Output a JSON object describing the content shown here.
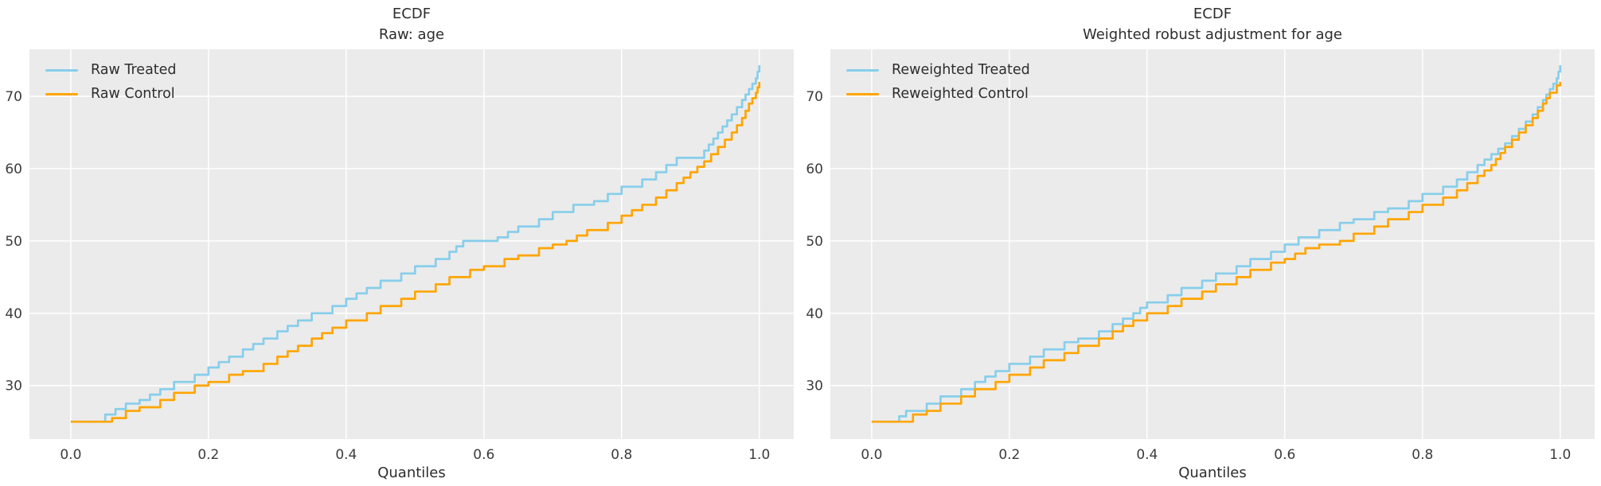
{
  "figure": {
    "background": "#ffffff",
    "text_color": "#2d2d2d",
    "tick_color": "#3c3c3c"
  },
  "chart_data": [
    {
      "type": "line",
      "subtype": "quantile-step-ecdf",
      "title_lines": [
        "ECDF",
        "Raw: age"
      ],
      "xlabel": "Quantiles",
      "ylabel": "",
      "xlim": [
        -0.06,
        1.05
      ],
      "ylim": [
        22.6,
        76.5
      ],
      "xticks": [
        0.0,
        0.2,
        0.4,
        0.6,
        0.8,
        1.0
      ],
      "xtick_labels": [
        "0.0",
        "0.2",
        "0.4",
        "0.6",
        "0.8",
        "1.0"
      ],
      "yticks": [
        30,
        40,
        50,
        60,
        70
      ],
      "grid": true,
      "legend_position": "upper-left",
      "plot_background": "#ebebeb",
      "grid_color": "#ffffff",
      "series": [
        {
          "name": "Raw Treated",
          "color": "#87ceeb",
          "points": [
            [
              0.0,
              25
            ],
            [
              0.03,
              25
            ],
            [
              0.05,
              26
            ],
            [
              0.08,
              27.5
            ],
            [
              0.1,
              28
            ],
            [
              0.13,
              29.5
            ],
            [
              0.15,
              30.5
            ],
            [
              0.18,
              31.5
            ],
            [
              0.2,
              32.5
            ],
            [
              0.23,
              34
            ],
            [
              0.25,
              35
            ],
            [
              0.28,
              36.5
            ],
            [
              0.3,
              37.5
            ],
            [
              0.33,
              39
            ],
            [
              0.35,
              40
            ],
            [
              0.38,
              41
            ],
            [
              0.4,
              42
            ],
            [
              0.43,
              43.5
            ],
            [
              0.45,
              44.5
            ],
            [
              0.48,
              45.5
            ],
            [
              0.5,
              46.5
            ],
            [
              0.53,
              47.5
            ],
            [
              0.55,
              48.5
            ],
            [
              0.57,
              50
            ],
            [
              0.62,
              50.5
            ],
            [
              0.65,
              52
            ],
            [
              0.68,
              53
            ],
            [
              0.7,
              54
            ],
            [
              0.73,
              55
            ],
            [
              0.76,
              55.5
            ],
            [
              0.8,
              57.5
            ],
            [
              0.83,
              58.5
            ],
            [
              0.85,
              59.5
            ],
            [
              0.88,
              61.5
            ],
            [
              0.92,
              62.5
            ],
            [
              0.94,
              65
            ],
            [
              0.96,
              67.5
            ],
            [
              0.975,
              69.5
            ],
            [
              0.985,
              71
            ],
            [
              0.995,
              72.5
            ],
            [
              1.0,
              74.3
            ]
          ]
        },
        {
          "name": "Raw Control",
          "color": "#ffa500",
          "points": [
            [
              0.0,
              25
            ],
            [
              0.045,
              25
            ],
            [
              0.06,
              25.5
            ],
            [
              0.08,
              26.5
            ],
            [
              0.1,
              27
            ],
            [
              0.13,
              28
            ],
            [
              0.15,
              29
            ],
            [
              0.18,
              30
            ],
            [
              0.2,
              30.5
            ],
            [
              0.23,
              31.5
            ],
            [
              0.25,
              32
            ],
            [
              0.28,
              33
            ],
            [
              0.3,
              34
            ],
            [
              0.33,
              35.5
            ],
            [
              0.35,
              36.5
            ],
            [
              0.38,
              38
            ],
            [
              0.4,
              39
            ],
            [
              0.43,
              40
            ],
            [
              0.45,
              41
            ],
            [
              0.48,
              42
            ],
            [
              0.5,
              43
            ],
            [
              0.53,
              44
            ],
            [
              0.55,
              45
            ],
            [
              0.58,
              46
            ],
            [
              0.6,
              46.5
            ],
            [
              0.63,
              47.5
            ],
            [
              0.65,
              48
            ],
            [
              0.68,
              49
            ],
            [
              0.7,
              49.5
            ],
            [
              0.72,
              50
            ],
            [
              0.75,
              51.5
            ],
            [
              0.78,
              52.5
            ],
            [
              0.8,
              53.5
            ],
            [
              0.83,
              55
            ],
            [
              0.85,
              56
            ],
            [
              0.88,
              58
            ],
            [
              0.9,
              59.5
            ],
            [
              0.92,
              61
            ],
            [
              0.94,
              63
            ],
            [
              0.96,
              65
            ],
            [
              0.975,
              67
            ],
            [
              0.985,
              69
            ],
            [
              0.995,
              70.5
            ],
            [
              1.0,
              72
            ]
          ]
        }
      ]
    },
    {
      "type": "line",
      "subtype": "quantile-step-ecdf",
      "title_lines": [
        "ECDF",
        "Weighted robust adjustment for age"
      ],
      "xlabel": "Quantiles",
      "ylabel": "",
      "xlim": [
        -0.06,
        1.05
      ],
      "ylim": [
        22.6,
        76.5
      ],
      "xticks": [
        0.0,
        0.2,
        0.4,
        0.6,
        0.8,
        1.0
      ],
      "xtick_labels": [
        "0.0",
        "0.2",
        "0.4",
        "0.6",
        "0.8",
        "1.0"
      ],
      "yticks": [
        30,
        40,
        50,
        60,
        70
      ],
      "grid": true,
      "legend_position": "upper-left",
      "plot_background": "#ebebeb",
      "grid_color": "#ffffff",
      "series": [
        {
          "name": "Reweighted Treated",
          "color": "#87ceeb",
          "points": [
            [
              0.0,
              25
            ],
            [
              0.03,
              25
            ],
            [
              0.05,
              26.5
            ],
            [
              0.08,
              27.5
            ],
            [
              0.1,
              28.5
            ],
            [
              0.13,
              29.5
            ],
            [
              0.15,
              30.5
            ],
            [
              0.18,
              32
            ],
            [
              0.2,
              33
            ],
            [
              0.23,
              34
            ],
            [
              0.25,
              35
            ],
            [
              0.28,
              36
            ],
            [
              0.3,
              36.5
            ],
            [
              0.33,
              37.5
            ],
            [
              0.35,
              38.5
            ],
            [
              0.38,
              40
            ],
            [
              0.4,
              41.5
            ],
            [
              0.43,
              42.5
            ],
            [
              0.45,
              43.5
            ],
            [
              0.48,
              44.5
            ],
            [
              0.5,
              45.5
            ],
            [
              0.53,
              46.5
            ],
            [
              0.55,
              47.5
            ],
            [
              0.58,
              48.5
            ],
            [
              0.6,
              49.5
            ],
            [
              0.62,
              50.5
            ],
            [
              0.65,
              51.5
            ],
            [
              0.68,
              52.5
            ],
            [
              0.7,
              53
            ],
            [
              0.73,
              54
            ],
            [
              0.75,
              54.5
            ],
            [
              0.78,
              55.5
            ],
            [
              0.8,
              56.5
            ],
            [
              0.83,
              57.5
            ],
            [
              0.85,
              58.5
            ],
            [
              0.88,
              60.5
            ],
            [
              0.9,
              62
            ],
            [
              0.92,
              63.5
            ],
            [
              0.94,
              65.5
            ],
            [
              0.96,
              67.5
            ],
            [
              0.975,
              69.5
            ],
            [
              0.985,
              71
            ],
            [
              0.995,
              72.5
            ],
            [
              1.0,
              74.3
            ]
          ]
        },
        {
          "name": "Reweighted Control",
          "color": "#ffa500",
          "points": [
            [
              0.0,
              25
            ],
            [
              0.04,
              25
            ],
            [
              0.06,
              26
            ],
            [
              0.08,
              26.5
            ],
            [
              0.1,
              27.5
            ],
            [
              0.13,
              28.5
            ],
            [
              0.15,
              29.5
            ],
            [
              0.18,
              30.5
            ],
            [
              0.2,
              31.5
            ],
            [
              0.23,
              32.5
            ],
            [
              0.25,
              33.5
            ],
            [
              0.28,
              34.5
            ],
            [
              0.3,
              35.5
            ],
            [
              0.33,
              36.5
            ],
            [
              0.35,
              37.5
            ],
            [
              0.38,
              39
            ],
            [
              0.4,
              40
            ],
            [
              0.43,
              41
            ],
            [
              0.45,
              42
            ],
            [
              0.48,
              43
            ],
            [
              0.5,
              44
            ],
            [
              0.53,
              45
            ],
            [
              0.55,
              46
            ],
            [
              0.58,
              47
            ],
            [
              0.6,
              47.5
            ],
            [
              0.63,
              49
            ],
            [
              0.65,
              49.5
            ],
            [
              0.68,
              50
            ],
            [
              0.7,
              51
            ],
            [
              0.73,
              52
            ],
            [
              0.75,
              53
            ],
            [
              0.78,
              54
            ],
            [
              0.8,
              55
            ],
            [
              0.83,
              56
            ],
            [
              0.85,
              57
            ],
            [
              0.88,
              59
            ],
            [
              0.9,
              60.5
            ],
            [
              0.92,
              63
            ],
            [
              0.94,
              65
            ],
            [
              0.96,
              67
            ],
            [
              0.975,
              69
            ],
            [
              0.985,
              70.5
            ],
            [
              0.995,
              71.5
            ],
            [
              1.0,
              72
            ]
          ]
        }
      ]
    }
  ]
}
